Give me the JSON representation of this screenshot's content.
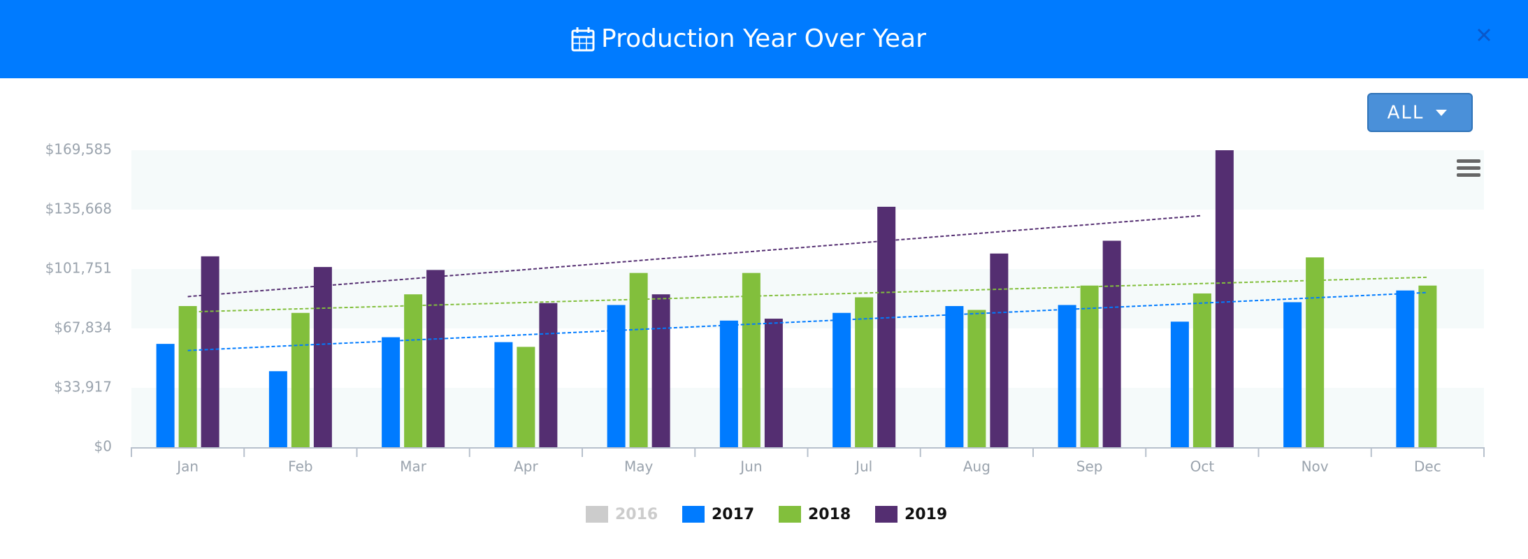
{
  "chart_data": {
    "type": "bar",
    "title": "Production Year Over Year",
    "dropdown_label": "ALL",
    "categories": [
      "Jan",
      "Feb",
      "Mar",
      "Apr",
      "May",
      "Jun",
      "Jul",
      "Aug",
      "Sep",
      "Oct",
      "Nov",
      "Dec"
    ],
    "series": [
      {
        "name": "2016",
        "color": "#cccccc",
        "visible": false,
        "values": [
          null,
          null,
          null,
          null,
          null,
          null,
          null,
          null,
          null,
          null,
          null,
          null
        ]
      },
      {
        "name": "2017",
        "color": "#007bff",
        "visible": true,
        "values": [
          59000,
          43400,
          62800,
          60000,
          81200,
          72300,
          76700,
          80600,
          81200,
          71700,
          82800,
          89500
        ]
      },
      {
        "name": "2018",
        "color": "#82bf3c",
        "visible": true,
        "values": [
          80600,
          76700,
          87300,
          57300,
          99500,
          99500,
          85600,
          78400,
          92300,
          87800,
          108400,
          92300
        ]
      },
      {
        "name": "2019",
        "color": "#542e71",
        "visible": true,
        "values": [
          109000,
          102900,
          101200,
          82300,
          87300,
          73400,
          137300,
          110600,
          117900,
          169585,
          null,
          null
        ]
      }
    ],
    "ylim": [
      0,
      169585
    ],
    "yticks": [
      {
        "value": 0,
        "label": "$0"
      },
      {
        "value": 33917,
        "label": "$33,917"
      },
      {
        "value": 67834,
        "label": "$67,834"
      },
      {
        "value": 101751,
        "label": "$101,751"
      },
      {
        "value": 135668,
        "label": "$135,668"
      },
      {
        "value": 169585,
        "label": "$169,585"
      }
    ],
    "alternate_bands": true,
    "trendlines": true,
    "legend": "bottom"
  }
}
